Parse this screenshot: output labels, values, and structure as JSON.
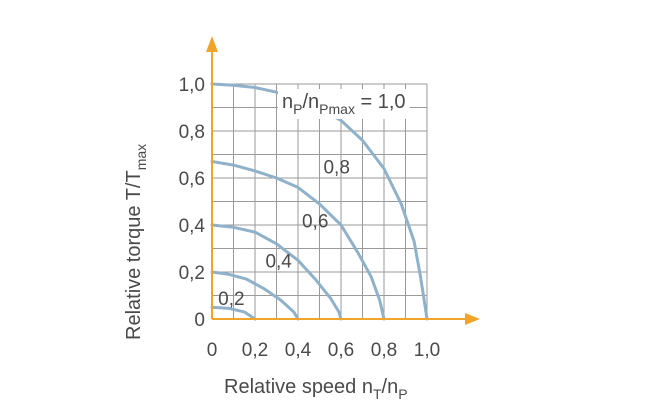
{
  "chart_data": {
    "type": "line",
    "xlabel": {
      "main": "Relative speed n",
      "sub1": "T",
      "mid": "/n",
      "sub2": "P"
    },
    "ylabel": {
      "main": "Relative torque T/T",
      "sub": "max"
    },
    "xlim": [
      0,
      1.0
    ],
    "ylim": [
      0,
      1.0
    ],
    "x_ticks": [
      "0",
      "0,2",
      "0,4",
      "0,6",
      "0,8",
      "1,0"
    ],
    "y_ticks": [
      "0",
      "0,2",
      "0,4",
      "0,6",
      "0,8",
      "1,0"
    ],
    "grid": true,
    "legend_label": {
      "n": "n",
      "sub1": "P",
      "slash": "/n",
      "sub2": "Pmax",
      "eq": " = 1,0"
    },
    "curve_color": "#8fb1c9",
    "axis_color": "#f0a52a",
    "series": [
      {
        "name": "0,2",
        "points": [
          [
            0,
            0.05
          ],
          [
            0.08,
            0.045
          ],
          [
            0.15,
            0.03
          ],
          [
            0.2,
            0.0
          ]
        ]
      },
      {
        "name": "0,4",
        "points": [
          [
            0,
            0.2
          ],
          [
            0.08,
            0.19
          ],
          [
            0.16,
            0.17
          ],
          [
            0.24,
            0.13
          ],
          [
            0.32,
            0.08
          ],
          [
            0.38,
            0.03
          ],
          [
            0.4,
            0.0
          ]
        ]
      },
      {
        "name": "0,6",
        "points": [
          [
            0,
            0.4
          ],
          [
            0.1,
            0.39
          ],
          [
            0.2,
            0.37
          ],
          [
            0.3,
            0.32
          ],
          [
            0.4,
            0.25
          ],
          [
            0.48,
            0.17
          ],
          [
            0.55,
            0.09
          ],
          [
            0.59,
            0.03
          ],
          [
            0.6,
            0.0
          ]
        ]
      },
      {
        "name": "0,8",
        "points": [
          [
            0,
            0.67
          ],
          [
            0.1,
            0.655
          ],
          [
            0.2,
            0.63
          ],
          [
            0.3,
            0.6
          ],
          [
            0.4,
            0.56
          ],
          [
            0.5,
            0.49
          ],
          [
            0.6,
            0.4
          ],
          [
            0.68,
            0.28
          ],
          [
            0.74,
            0.18
          ],
          [
            0.78,
            0.08
          ],
          [
            0.8,
            0.0
          ]
        ]
      },
      {
        "name": "1,0",
        "points": [
          [
            0,
            1.0
          ],
          [
            0.1,
            0.995
          ],
          [
            0.2,
            0.985
          ],
          [
            0.3,
            0.965
          ],
          [
            0.4,
            0.935
          ],
          [
            0.5,
            0.895
          ],
          [
            0.6,
            0.845
          ],
          [
            0.7,
            0.76
          ],
          [
            0.8,
            0.64
          ],
          [
            0.88,
            0.49
          ],
          [
            0.94,
            0.33
          ],
          [
            0.97,
            0.18
          ],
          [
            0.99,
            0.06
          ],
          [
            1.0,
            0.0
          ]
        ]
      }
    ],
    "curve_labels": [
      {
        "text": "0,2",
        "x": 0.09,
        "y": 0.06
      },
      {
        "text": "0,4",
        "x": 0.31,
        "y": 0.22
      },
      {
        "text": "0,6",
        "x": 0.48,
        "y": 0.39
      },
      {
        "text": "0,8",
        "x": 0.58,
        "y": 0.62
      }
    ]
  }
}
